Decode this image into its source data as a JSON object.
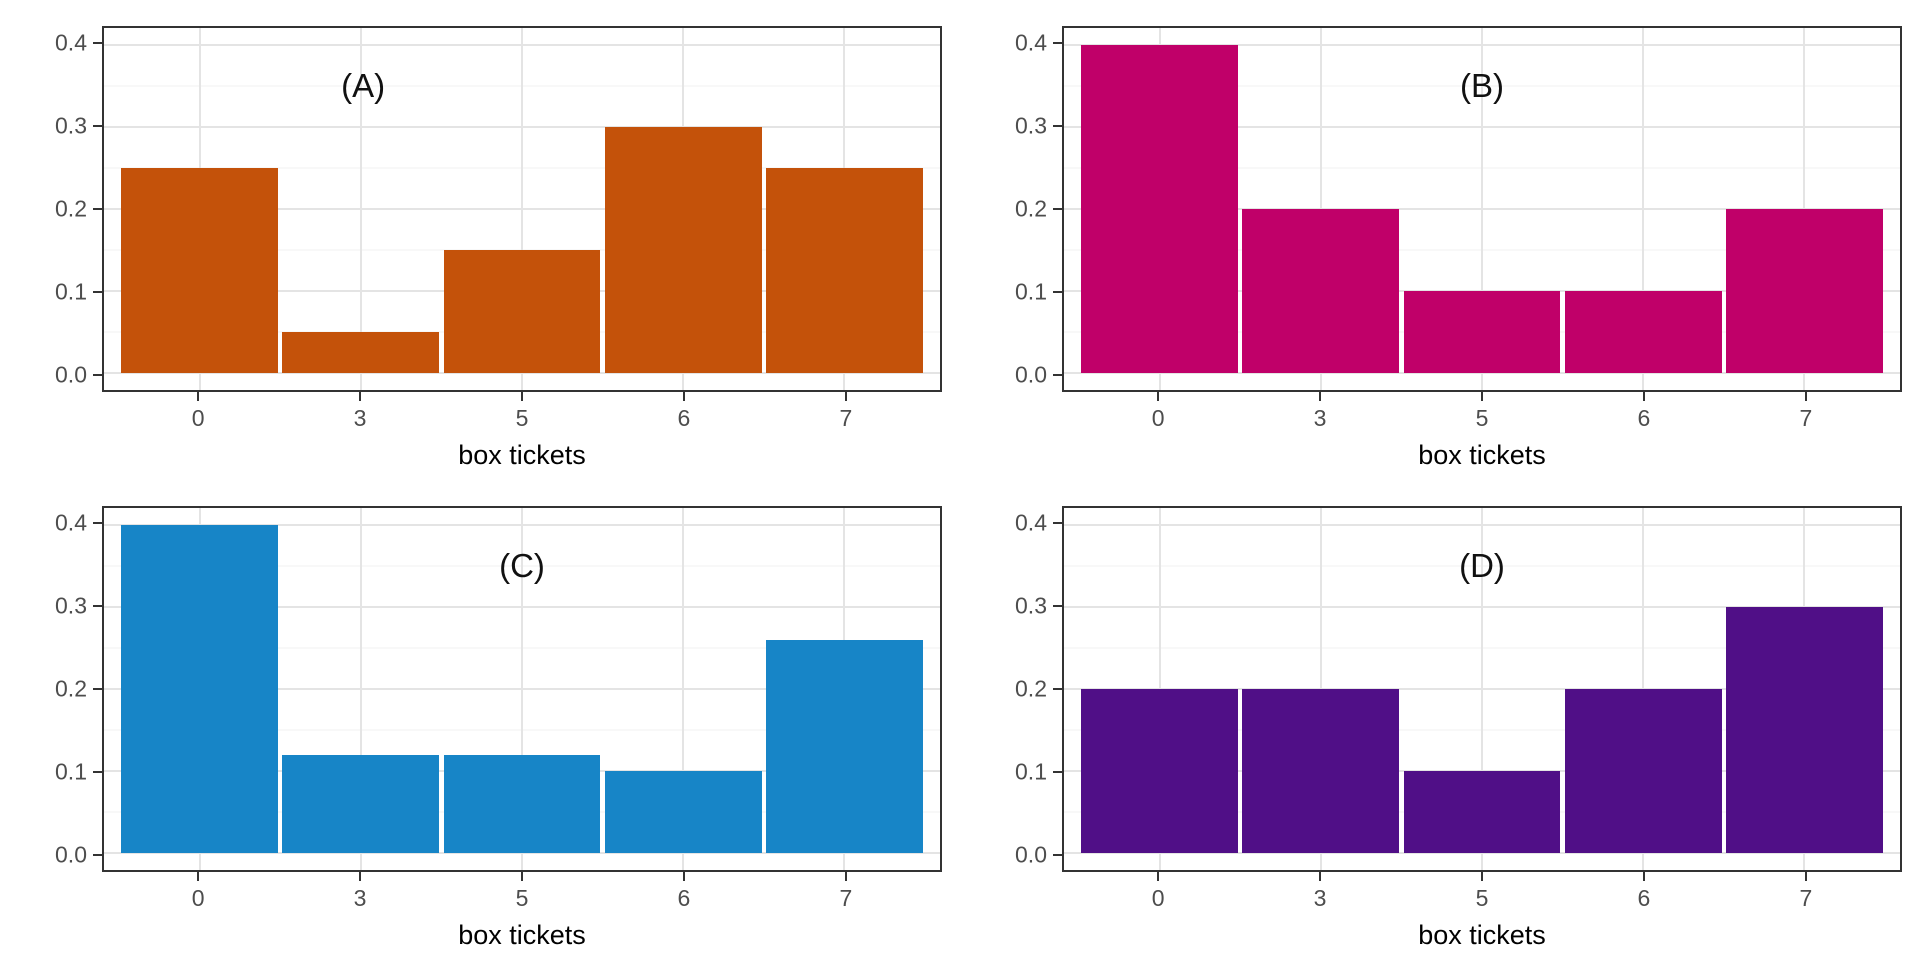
{
  "figure": {
    "xlabel": "box tickets",
    "categories": [
      "0",
      "3",
      "5",
      "6",
      "7"
    ],
    "y_ticks": [
      0.0,
      0.1,
      0.2,
      0.3,
      0.4
    ],
    "y_minor_ticks": [
      0.05,
      0.15,
      0.25,
      0.35
    ],
    "grid_major_color": "#E4E4E4",
    "grid_minor_color": "#F1F1F1",
    "panel_border_color": "#333333",
    "axis_tick_color": "#333333",
    "tick_label_color": "#4D4D4D",
    "panel_label_color": "#111111",
    "background_color": "#FFFFFF"
  },
  "chart_data": [
    {
      "type": "bar",
      "title": "(A)",
      "categories": [
        "0",
        "3",
        "5",
        "6",
        "7"
      ],
      "values": [
        0.25,
        0.05,
        0.15,
        0.3,
        0.25
      ],
      "xlabel": "box tickets",
      "ylabel": "",
      "ylim": [
        0.0,
        0.4
      ],
      "bar_color": "#C4520A",
      "grid": "on",
      "legend": "none",
      "title_x_frac": 0.31,
      "title_y_value": 0.35
    },
    {
      "type": "bar",
      "title": "(B)",
      "categories": [
        "0",
        "3",
        "5",
        "6",
        "7"
      ],
      "values": [
        0.4,
        0.2,
        0.1,
        0.1,
        0.2
      ],
      "xlabel": "box tickets",
      "ylabel": "",
      "ylim": [
        0.0,
        0.4
      ],
      "bar_color": "#C00069",
      "grid": "on",
      "legend": "none",
      "title_x_frac": 0.5,
      "title_y_value": 0.35
    },
    {
      "type": "bar",
      "title": "(C)",
      "categories": [
        "0",
        "3",
        "5",
        "6",
        "7"
      ],
      "values": [
        0.4,
        0.12,
        0.12,
        0.1,
        0.26
      ],
      "xlabel": "box tickets",
      "ylabel": "",
      "ylim": [
        0.0,
        0.4
      ],
      "bar_color": "#1785C7",
      "grid": "on",
      "legend": "none",
      "title_x_frac": 0.5,
      "title_y_value": 0.35
    },
    {
      "type": "bar",
      "title": "(D)",
      "categories": [
        "0",
        "3",
        "5",
        "6",
        "7"
      ],
      "values": [
        0.2,
        0.2,
        0.1,
        0.2,
        0.3
      ],
      "xlabel": "box tickets",
      "ylabel": "",
      "ylim": [
        0.0,
        0.4
      ],
      "bar_color": "#500F87",
      "grid": "on",
      "legend": "none",
      "title_x_frac": 0.5,
      "title_y_value": 0.35
    }
  ]
}
